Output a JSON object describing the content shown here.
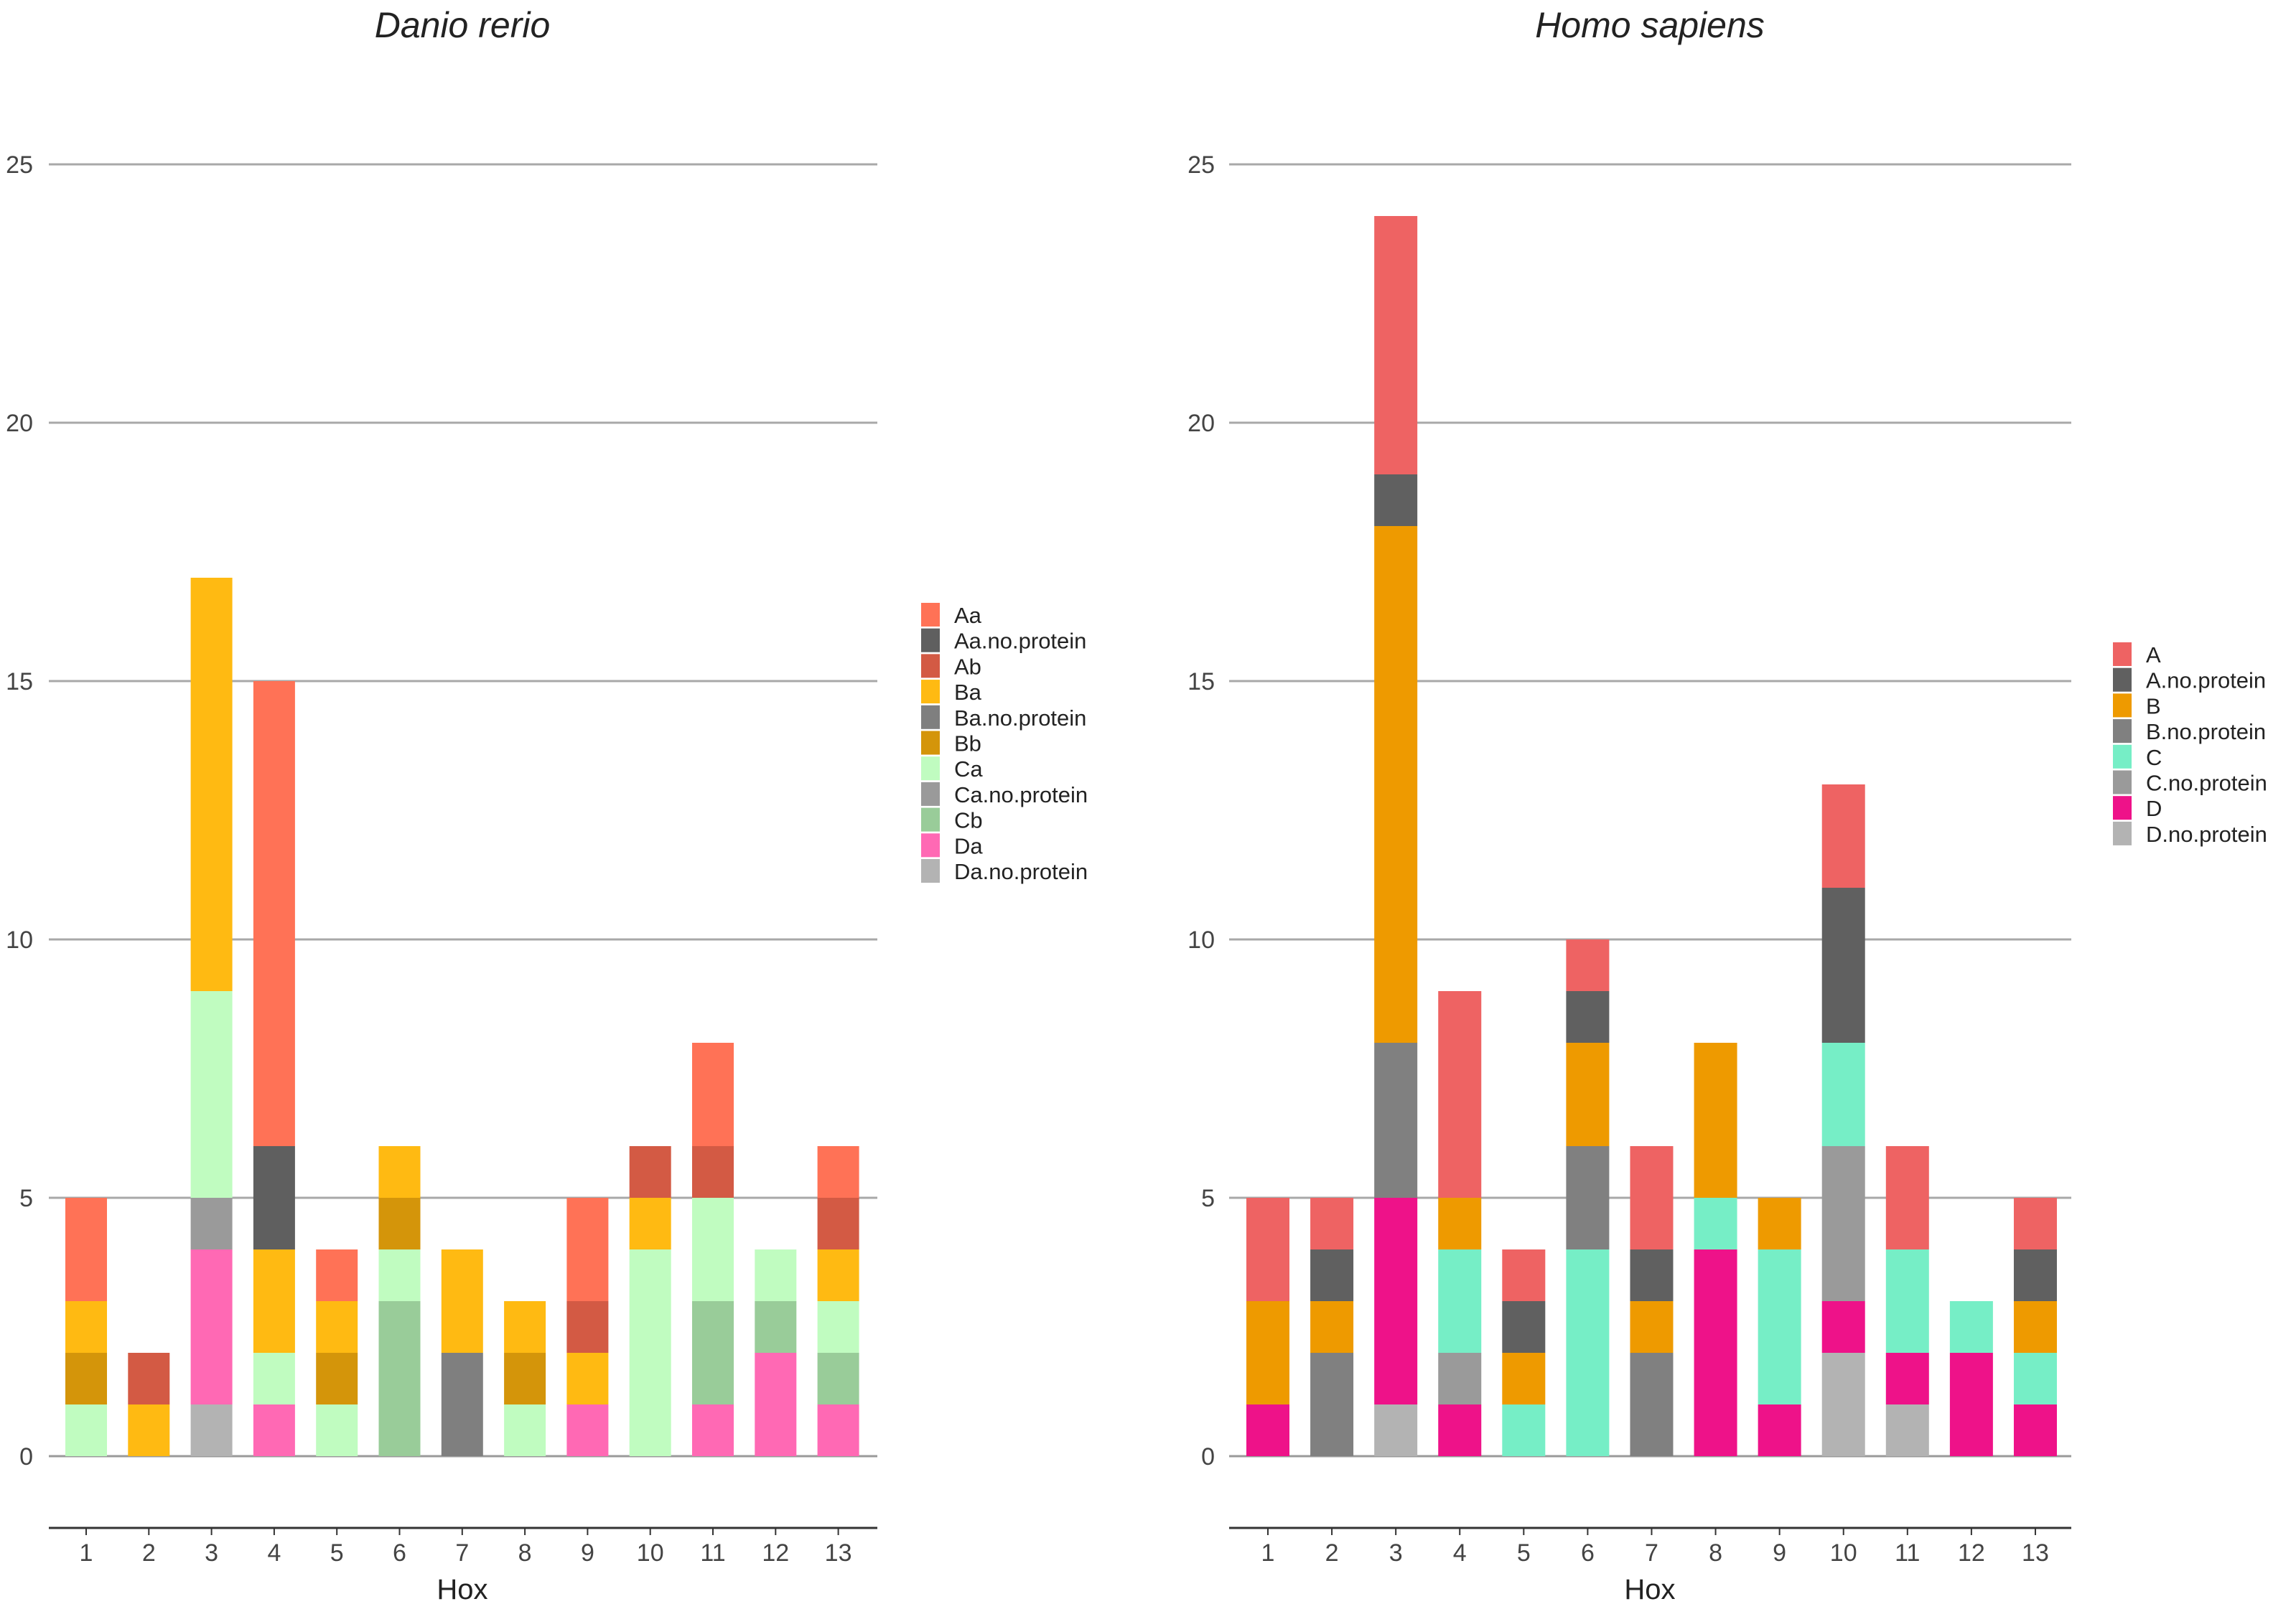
{
  "chart_data": [
    {
      "type": "bar",
      "stacked": true,
      "title": "Danio rerio",
      "xlabel": "Hox",
      "ylabel": "",
      "ylim": [
        0,
        25
      ],
      "yticks": [
        0,
        5,
        10,
        15,
        20,
        25
      ],
      "grid": true,
      "legend_position": "right",
      "categories": [
        "1",
        "2",
        "3",
        "4",
        "5",
        "6",
        "7",
        "8",
        "9",
        "10",
        "11",
        "12",
        "13"
      ],
      "series": [
        {
          "name": "Da.no.protein",
          "color": "#b3b3b3",
          "values": [
            0,
            0,
            1,
            0,
            0,
            0,
            0,
            0,
            0,
            0,
            0,
            0,
            0
          ]
        },
        {
          "name": "Da",
          "color": "#ff69b4",
          "values": [
            0,
            0,
            3,
            1,
            0,
            0,
            0,
            0,
            1,
            0,
            1,
            2,
            1
          ]
        },
        {
          "name": "Cb",
          "color": "#99cc99",
          "values": [
            0,
            0,
            0,
            0,
            0,
            3,
            0,
            0,
            0,
            0,
            2,
            1,
            1
          ]
        },
        {
          "name": "Ca.no.protein",
          "color": "#9a9a9a",
          "values": [
            0,
            0,
            1,
            0,
            0,
            0,
            0,
            0,
            0,
            0,
            0,
            0,
            0
          ]
        },
        {
          "name": "Ca",
          "color": "#c0fcc0",
          "values": [
            1,
            0,
            4,
            1,
            1,
            1,
            0,
            1,
            0,
            4,
            2,
            1,
            1
          ]
        },
        {
          "name": "Bb",
          "color": "#d4950a",
          "values": [
            1,
            0,
            0,
            0,
            1,
            1,
            0,
            1,
            0,
            0,
            0,
            0,
            0
          ]
        },
        {
          "name": "Ba.no.protein",
          "color": "#7f7f7f",
          "values": [
            0,
            0,
            0,
            0,
            0,
            0,
            2,
            0,
            0,
            0,
            0,
            0,
            0
          ]
        },
        {
          "name": "Ba",
          "color": "#ffba12",
          "values": [
            1,
            1,
            8,
            2,
            1,
            1,
            2,
            1,
            1,
            1,
            0,
            0,
            1
          ]
        },
        {
          "name": "Ab",
          "color": "#d35a44",
          "values": [
            0,
            1,
            0,
            0,
            0,
            0,
            0,
            0,
            1,
            1,
            1,
            0,
            1
          ]
        },
        {
          "name": "Aa.no.protein",
          "color": "#5f5f5f",
          "values": [
            0,
            0,
            0,
            2,
            0,
            0,
            0,
            0,
            0,
            0,
            0,
            0,
            0
          ]
        },
        {
          "name": "Aa",
          "color": "#ff7256",
          "values": [
            2,
            0,
            0,
            9,
            1,
            0,
            0,
            0,
            2,
            0,
            2,
            0,
            1
          ]
        }
      ],
      "legend": [
        "Aa",
        "Aa.no.protein",
        "Ab",
        "Ba",
        "Ba.no.protein",
        "Bb",
        "Ca",
        "Ca.no.protein",
        "Cb",
        "Da",
        "Da.no.protein"
      ]
    },
    {
      "type": "bar",
      "stacked": true,
      "title": "Homo sapiens",
      "xlabel": "Hox",
      "ylabel": "",
      "ylim": [
        0,
        25
      ],
      "yticks": [
        0,
        5,
        10,
        15,
        20,
        25
      ],
      "grid": true,
      "legend_position": "right",
      "categories": [
        "1",
        "2",
        "3",
        "4",
        "5",
        "6",
        "7",
        "8",
        "9",
        "10",
        "11",
        "12",
        "13"
      ],
      "series": [
        {
          "name": "D.no.protein",
          "color": "#b3b3b3",
          "values": [
            0,
            0,
            1,
            0,
            0,
            0,
            0,
            0,
            0,
            2,
            1,
            0,
            0
          ]
        },
        {
          "name": "D",
          "color": "#ee1289",
          "values": [
            1,
            0,
            4,
            1,
            0,
            0,
            0,
            4,
            1,
            1,
            1,
            2,
            1
          ]
        },
        {
          "name": "C.no.protein",
          "color": "#9a9a9a",
          "values": [
            0,
            0,
            0,
            1,
            0,
            0,
            0,
            0,
            0,
            3,
            0,
            0,
            0
          ]
        },
        {
          "name": "C",
          "color": "#76eec6",
          "values": [
            0,
            0,
            0,
            2,
            1,
            4,
            0,
            1,
            3,
            2,
            2,
            1,
            1
          ]
        },
        {
          "name": "B.no.protein",
          "color": "#808080",
          "values": [
            0,
            2,
            3,
            0,
            0,
            2,
            2,
            0,
            0,
            0,
            0,
            0,
            0
          ]
        },
        {
          "name": "B",
          "color": "#ee9a00",
          "values": [
            2,
            1,
            10,
            1,
            1,
            2,
            1,
            3,
            1,
            0,
            0,
            0,
            1
          ]
        },
        {
          "name": "A.no.protein",
          "color": "#606060",
          "values": [
            0,
            1,
            1,
            0,
            1,
            1,
            1,
            0,
            0,
            3,
            0,
            0,
            1
          ]
        },
        {
          "name": "A",
          "color": "#ee6363",
          "values": [
            2,
            1,
            5,
            4,
            1,
            1,
            2,
            0,
            0,
            2,
            2,
            0,
            1
          ]
        }
      ],
      "legend": [
        "A",
        "A.no.protein",
        "B",
        "B.no.protein",
        "C",
        "C.no.protein",
        "D",
        "D.no.protein"
      ]
    }
  ]
}
